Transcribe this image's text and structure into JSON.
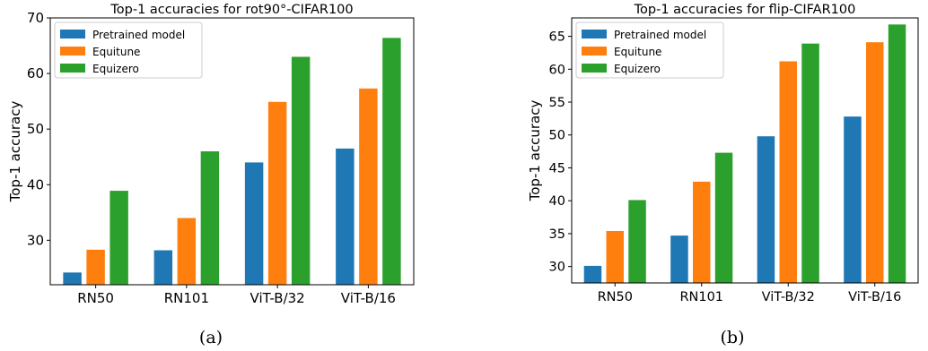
{
  "chart_data": [
    {
      "type": "bar",
      "title": "Top-1 accuracies for rot90°-CIFAR100",
      "xlabel": "",
      "ylabel": "Top-1 accuracy",
      "categories": [
        "RN50",
        "RN101",
        "ViT-B/32",
        "ViT-B/16"
      ],
      "series": [
        {
          "name": "Pretrained model",
          "values": [
            24.2,
            28.2,
            44.0,
            46.5
          ]
        },
        {
          "name": "Equitune",
          "values": [
            28.3,
            34.0,
            54.9,
            57.3
          ]
        },
        {
          "name": "Equizero",
          "values": [
            38.9,
            46.0,
            63.0,
            66.4
          ]
        }
      ],
      "ylim": [
        22,
        70
      ],
      "yticks": [
        30,
        40,
        50,
        60,
        70
      ],
      "legend": "top-left",
      "grid": false,
      "caption": "(a)"
    },
    {
      "type": "bar",
      "title": "Top-1 accuracies for flip-CIFAR100",
      "xlabel": "",
      "ylabel": "Top-1 accuracy",
      "categories": [
        "RN50",
        "RN101",
        "ViT-B/32",
        "ViT-B/16"
      ],
      "series": [
        {
          "name": "Pretrained model",
          "values": [
            30.1,
            34.7,
            49.8,
            52.8
          ]
        },
        {
          "name": "Equitune",
          "values": [
            35.4,
            42.9,
            61.2,
            64.1
          ]
        },
        {
          "name": "Equizero",
          "values": [
            40.1,
            47.3,
            63.9,
            66.8
          ]
        }
      ],
      "ylim": [
        27.5,
        67.8
      ],
      "yticks": [
        30,
        35,
        40,
        45,
        50,
        55,
        60,
        65
      ],
      "legend": "top-left",
      "grid": false,
      "caption": "(b)"
    }
  ],
  "colors": {
    "Pretrained model": "#1f77b4",
    "Equitune": "#ff7f0e",
    "Equizero": "#2ca02c"
  }
}
